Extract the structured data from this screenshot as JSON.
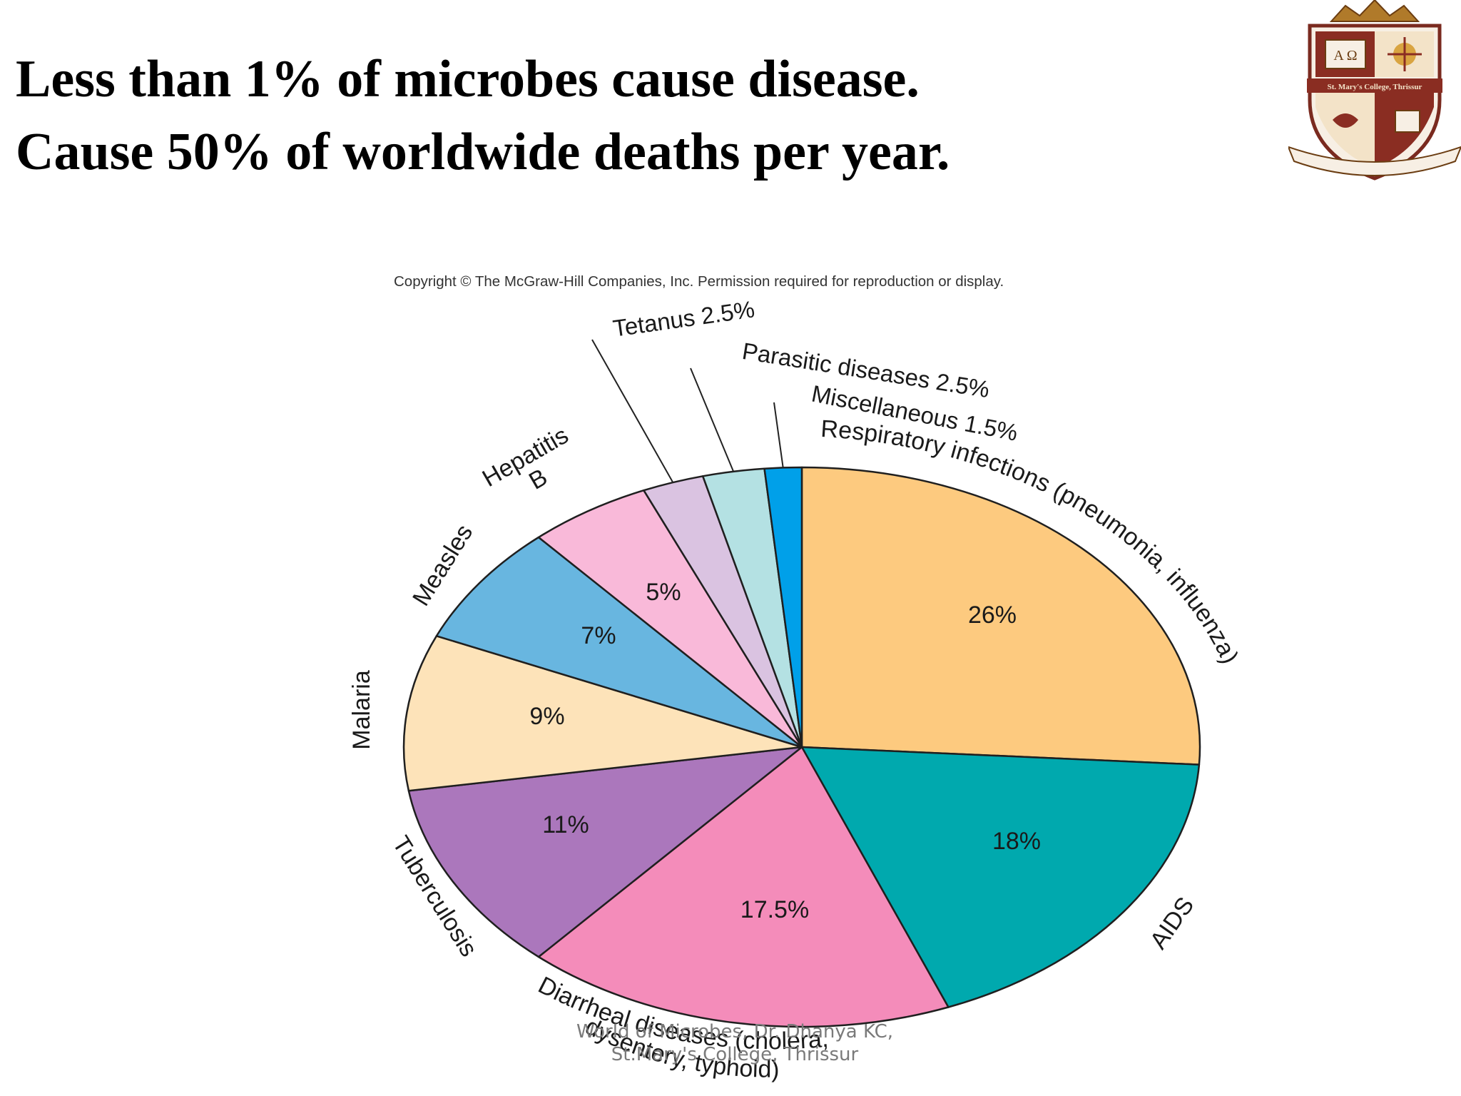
{
  "slide": {
    "title_line1": "Less than 1% of microbes cause disease.",
    "title_line2": "Cause 50% of worldwide deaths per year.",
    "copyright": "Copyright © The McGraw-Hill Companies, Inc. Permission required for reproduction or display.",
    "footer_line1": "World of Microbes, Dr. Dhanya KC,",
    "footer_line2": "St.Mary's College, Thrissur",
    "logo_text": "St. Mary's College, Thrissur"
  },
  "chart_data": {
    "type": "pie",
    "start_angle_deg": 0,
    "direction": "clockwise",
    "slices": [
      {
        "label": "Respiratory infections (pneumonia, influenza)",
        "value": 26,
        "value_label": "26%",
        "color": "#fdca7f"
      },
      {
        "label": "AIDS",
        "value": 18,
        "value_label": "18%",
        "color": "#00a9ae"
      },
      {
        "label": "Diarrheal diseases (cholera, dysentery, typhoid)",
        "value": 17.5,
        "value_label": "17.5%",
        "color": "#f48cba"
      },
      {
        "label": "Tuberculosis",
        "value": 11,
        "value_label": "11%",
        "color": "#ab77bc"
      },
      {
        "label": "Malaria",
        "value": 9,
        "value_label": "9%",
        "color": "#fde3b9"
      },
      {
        "label": "Measles",
        "value": 7,
        "value_label": "7%",
        "color": "#68b6e0"
      },
      {
        "label": "Hepatitis B",
        "value": 5,
        "value_label": "5%",
        "color": "#f9b9d9"
      },
      {
        "label": "Tetanus 2.5%",
        "value": 2.5,
        "value_label": "",
        "color": "#dac3e1"
      },
      {
        "label": "Parasitic diseases 2.5%",
        "value": 2.5,
        "value_label": "",
        "color": "#b4e1e3"
      },
      {
        "label": "Miscellaneous 1.5%",
        "value": 1.5,
        "value_label": "",
        "color": "#00a0e9"
      }
    ]
  }
}
